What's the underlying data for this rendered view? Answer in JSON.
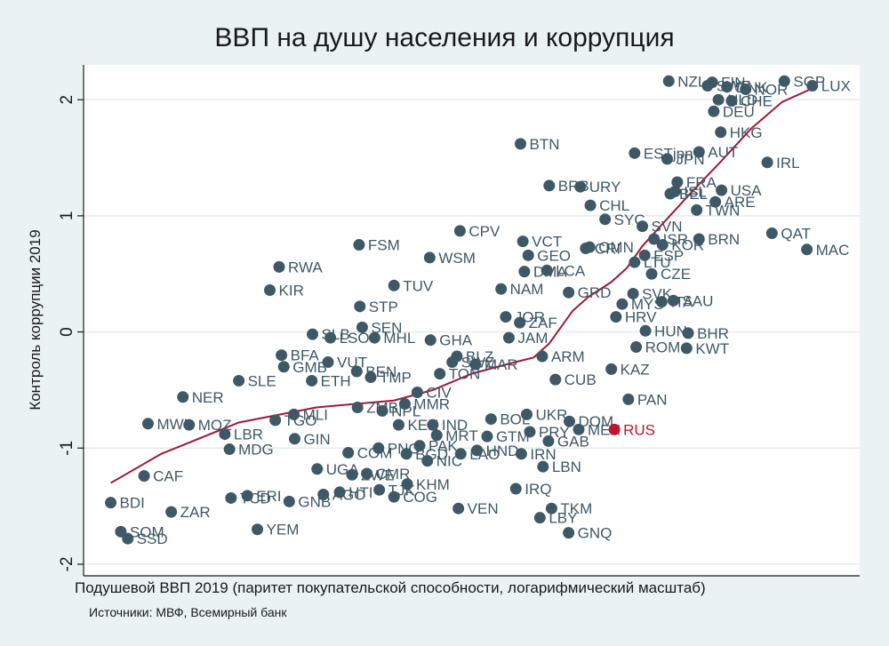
{
  "chart_data": {
    "type": "scatter",
    "title": "ВВП на душу населения и коррупция",
    "xlabel": "Подушевой ВВП 2019 (паритет покупательской способности, логарифмический масштаб)",
    "ylabel": "Контроль коррупции 2019",
    "source": "Источники: МВФ, Всемирный банк",
    "x_scale": "log",
    "xlim": [
      0,
      100
    ],
    "ylim": [
      -2.1,
      2.3
    ],
    "yticks": [
      -2,
      -1,
      0,
      1,
      2
    ],
    "grid": "horizontal",
    "highlight": "RUS",
    "colors": {
      "points": "#3f5866",
      "highlight": "#c0132c",
      "fit_line": "#a3173a",
      "background": "#eaf2f3"
    },
    "note": "",
    "points": [
      {
        "label": "BDI",
        "x": 3.5,
        "y": -1.47
      },
      {
        "label": "SSD",
        "x": 5.7,
        "y": -1.78
      },
      {
        "label": "SOM",
        "x": 4.8,
        "y": -1.72
      },
      {
        "label": "CAF",
        "x": 7.8,
        "y": -1.24
      },
      {
        "label": "ZAR",
        "x": 11.3,
        "y": -1.55
      },
      {
        "label": "MWI",
        "x": 8.3,
        "y": -0.79
      },
      {
        "label": "MOZ",
        "x": 13.6,
        "y": -0.8
      },
      {
        "label": "NER",
        "x": 12.8,
        "y": -0.56
      },
      {
        "label": "LBR",
        "x": 18.2,
        "y": -0.88
      },
      {
        "label": "MDG",
        "x": 18.8,
        "y": -1.01
      },
      {
        "label": "TCD",
        "x": 19.0,
        "y": -1.43
      },
      {
        "label": "ERI",
        "x": 21.1,
        "y": -1.41
      },
      {
        "label": "YEM",
        "x": 22.4,
        "y": -1.7
      },
      {
        "label": "GNB",
        "x": 26.5,
        "y": -1.46
      },
      {
        "label": "SLE",
        "x": 20.0,
        "y": -0.42
      },
      {
        "label": "GIN",
        "x": 27.2,
        "y": -0.92
      },
      {
        "label": "TGO",
        "x": 24.7,
        "y": -0.76
      },
      {
        "label": "MLI",
        "x": 27.1,
        "y": -0.71
      },
      {
        "label": "BFA",
        "x": 25.5,
        "y": -0.2
      },
      {
        "label": "GMB",
        "x": 25.8,
        "y": -0.3
      },
      {
        "label": "ETH",
        "x": 29.4,
        "y": -0.42
      },
      {
        "label": "RWA",
        "x": 25.2,
        "y": 0.56
      },
      {
        "label": "KIR",
        "x": 24.0,
        "y": 0.36
      },
      {
        "label": "FSM",
        "x": 35.5,
        "y": 0.75
      },
      {
        "label": "SLB",
        "x": 29.5,
        "y": -0.02
      },
      {
        "label": "LSO",
        "x": 31.8,
        "y": -0.05
      },
      {
        "label": "SEN",
        "x": 35.9,
        "y": 0.04
      },
      {
        "label": "MHL",
        "x": 37.5,
        "y": -0.05
      },
      {
        "label": "TUV",
        "x": 40.0,
        "y": 0.4
      },
      {
        "label": "STP",
        "x": 35.6,
        "y": 0.22
      },
      {
        "label": "BEN",
        "x": 35.2,
        "y": -0.34
      },
      {
        "label": "TMP",
        "x": 37.0,
        "y": -0.39
      },
      {
        "label": "VUT",
        "x": 31.5,
        "y": -0.26
      },
      {
        "label": "COM",
        "x": 34.1,
        "y": -1.04
      },
      {
        "label": "UGA",
        "x": 30.1,
        "y": -1.18
      },
      {
        "label": "ZWE",
        "x": 34.6,
        "y": -1.23
      },
      {
        "label": "AGO",
        "x": 30.9,
        "y": -1.4
      },
      {
        "label": "HTI",
        "x": 33.0,
        "y": -1.38
      },
      {
        "label": "CMR",
        "x": 36.5,
        "y": -1.22
      },
      {
        "label": "TJK",
        "x": 38.1,
        "y": -1.36
      },
      {
        "label": "COG",
        "x": 40.0,
        "y": -1.42
      },
      {
        "label": "KHM",
        "x": 41.7,
        "y": -1.31
      },
      {
        "label": "PNG",
        "x": 38.0,
        "y": -1.0
      },
      {
        "label": "MMR",
        "x": 41.4,
        "y": -0.62
      },
      {
        "label": "CIV",
        "x": 43.0,
        "y": -0.52
      },
      {
        "label": "ZMB",
        "x": 35.3,
        "y": -0.65
      },
      {
        "label": "KEN",
        "x": 40.6,
        "y": -0.8
      },
      {
        "label": "NPL",
        "x": 38.5,
        "y": -0.68
      },
      {
        "label": "GHA",
        "x": 44.7,
        "y": -0.07
      },
      {
        "label": "WSM",
        "x": 44.6,
        "y": 0.64
      },
      {
        "label": "CPV",
        "x": 48.5,
        "y": 0.87
      },
      {
        "label": "SWZ",
        "x": 47.5,
        "y": -0.26
      },
      {
        "label": "BLZ",
        "x": 48.1,
        "y": -0.21
      },
      {
        "label": "TON",
        "x": 45.9,
        "y": -0.36
      },
      {
        "label": "MAR",
        "x": 50.5,
        "y": -0.28
      },
      {
        "label": "IND",
        "x": 45.0,
        "y": -0.8
      },
      {
        "label": "NIC",
        "x": 44.3,
        "y": -1.11
      },
      {
        "label": "PAK",
        "x": 43.3,
        "y": -0.98
      },
      {
        "label": "BGD",
        "x": 41.6,
        "y": -1.05
      },
      {
        "label": "MRT",
        "x": 45.5,
        "y": -0.89
      },
      {
        "label": "GTM",
        "x": 52.0,
        "y": -0.9
      },
      {
        "label": "LAO",
        "x": 48.6,
        "y": -1.05
      },
      {
        "label": "HND",
        "x": 50.7,
        "y": -1.02
      },
      {
        "label": "VEN",
        "x": 48.3,
        "y": -1.52
      },
      {
        "label": "BOL",
        "x": 52.5,
        "y": -0.75
      },
      {
        "label": "NAM",
        "x": 53.8,
        "y": 0.37
      },
      {
        "label": "JOR",
        "x": 54.4,
        "y": 0.13
      },
      {
        "label": "ZAF",
        "x": 56.2,
        "y": 0.08
      },
      {
        "label": "VCT",
        "x": 56.6,
        "y": 0.78
      },
      {
        "label": "DMA",
        "x": 56.8,
        "y": 0.52
      },
      {
        "label": "GEO",
        "x": 57.3,
        "y": 0.66
      },
      {
        "label": "BTN",
        "x": 56.3,
        "y": 1.62
      },
      {
        "label": "JAM",
        "x": 54.8,
        "y": -0.05
      },
      {
        "label": "IRN",
        "x": 56.4,
        "y": -1.05
      },
      {
        "label": "IRQ",
        "x": 55.7,
        "y": -1.35
      },
      {
        "label": "LCA",
        "x": 59.7,
        "y": 0.53
      },
      {
        "label": "BRB",
        "x": 60.0,
        "y": 1.26
      },
      {
        "label": "URY",
        "x": 64.0,
        "y": 1.25
      },
      {
        "label": "CHL",
        "x": 65.3,
        "y": 1.09
      },
      {
        "label": "GRD",
        "x": 62.5,
        "y": 0.34
      },
      {
        "label": "OMN",
        "x": 65.2,
        "y": 0.73
      },
      {
        "label": "TKM",
        "x": 60.3,
        "y": -1.52
      },
      {
        "label": "LBY",
        "x": 58.8,
        "y": -1.6
      },
      {
        "label": "GNQ",
        "x": 62.5,
        "y": -1.73
      },
      {
        "label": "LBN",
        "x": 59.2,
        "y": -1.16
      },
      {
        "label": "GAB",
        "x": 59.9,
        "y": -0.94
      },
      {
        "label": "DOM",
        "x": 62.6,
        "y": -0.77
      },
      {
        "label": "MEX",
        "x": 63.8,
        "y": -0.84
      },
      {
        "label": "UKR",
        "x": 57.1,
        "y": -0.71
      },
      {
        "label": "PRY",
        "x": 57.5,
        "y": -0.86
      },
      {
        "label": "ARM",
        "x": 59.1,
        "y": -0.21
      },
      {
        "label": "CRI",
        "x": 64.7,
        "y": 0.72
      },
      {
        "label": "PAN",
        "x": 70.2,
        "y": -0.58
      },
      {
        "label": "RUS",
        "x": 68.4,
        "y": -0.84
      },
      {
        "label": "KAZ",
        "x": 68.0,
        "y": -0.32
      },
      {
        "label": "CUB",
        "x": 60.8,
        "y": -0.41
      },
      {
        "label": "SYC",
        "x": 67.2,
        "y": 0.97
      },
      {
        "label": "SVN",
        "x": 72.0,
        "y": 0.91
      },
      {
        "label": "ESP",
        "x": 72.3,
        "y": 0.66
      },
      {
        "label": "ISR",
        "x": 73.5,
        "y": 0.8
      },
      {
        "label": "KOR",
        "x": 74.6,
        "y": 0.75
      },
      {
        "label": "CZE",
        "x": 73.2,
        "y": 0.5
      },
      {
        "label": "LTU",
        "x": 71.0,
        "y": 0.6
      },
      {
        "label": "ITA",
        "x": 74.5,
        "y": 0.26
      },
      {
        "label": "SAU",
        "x": 76.0,
        "y": 0.27
      },
      {
        "label": "MYS",
        "x": 69.4,
        "y": 0.24
      },
      {
        "label": "SVK",
        "x": 70.8,
        "y": 0.33
      },
      {
        "label": "HRV",
        "x": 68.6,
        "y": 0.13
      },
      {
        "label": "ROM",
        "x": 71.2,
        "y": -0.13
      },
      {
        "label": "HUN",
        "x": 72.4,
        "y": 0.01
      },
      {
        "label": "KWT",
        "x": 77.7,
        "y": -0.14
      },
      {
        "label": "BHR",
        "x": 77.9,
        "y": -0.01
      },
      {
        "label": "BRN",
        "x": 79.3,
        "y": 0.8
      },
      {
        "label": "TWN",
        "x": 79.0,
        "y": 1.05
      },
      {
        "label": "ARE",
        "x": 81.4,
        "y": 1.12
      },
      {
        "label": "USA",
        "x": 82.2,
        "y": 1.22
      },
      {
        "label": "FRA",
        "x": 76.5,
        "y": 1.29
      },
      {
        "label": "ISL",
        "x": 76.2,
        "y": 1.21
      },
      {
        "label": "BEL",
        "x": 75.6,
        "y": 1.19
      },
      {
        "label": "ESTjpn",
        "x": 71.0,
        "y": 1.54
      },
      {
        "label": "JPN",
        "x": 75.2,
        "y": 1.49
      },
      {
        "label": "AUT",
        "x": 79.3,
        "y": 1.55
      },
      {
        "label": "HKG",
        "x": 82.1,
        "y": 1.72
      },
      {
        "label": "DEU",
        "x": 81.2,
        "y": 1.9
      },
      {
        "label": "CHE",
        "x": 83.5,
        "y": 1.99
      },
      {
        "label": "NOR",
        "x": 85.3,
        "y": 2.09
      },
      {
        "label": "DNK",
        "x": 82.9,
        "y": 2.11
      },
      {
        "label": "FIN",
        "x": 81.0,
        "y": 2.15
      },
      {
        "label": "NZL",
        "x": 75.4,
        "y": 2.16
      },
      {
        "label": "NLD",
        "x": 81.8,
        "y": 2.0
      },
      {
        "label": "SWE",
        "x": 80.4,
        "y": 2.12
      },
      {
        "label": "IRL",
        "x": 88.1,
        "y": 1.46
      },
      {
        "label": "QAT",
        "x": 88.7,
        "y": 0.85
      },
      {
        "label": "MAC",
        "x": 93.2,
        "y": 0.71
      },
      {
        "label": "SGP",
        "x": 90.3,
        "y": 2.16
      },
      {
        "label": "LUX",
        "x": 93.9,
        "y": 2.12
      }
    ],
    "fit_line": {
      "x": [
        3.5,
        10,
        20,
        30,
        40,
        45,
        50,
        55,
        58,
        60,
        63,
        65,
        68,
        70,
        72,
        75,
        78,
        82,
        86,
        90,
        94
      ],
      "y": [
        -1.3,
        -1.05,
        -0.78,
        -0.65,
        -0.59,
        -0.5,
        -0.36,
        -0.27,
        -0.22,
        -0.1,
        0.18,
        0.3,
        0.43,
        0.55,
        0.74,
        0.96,
        1.18,
        1.46,
        1.75,
        1.98,
        2.1
      ]
    }
  }
}
